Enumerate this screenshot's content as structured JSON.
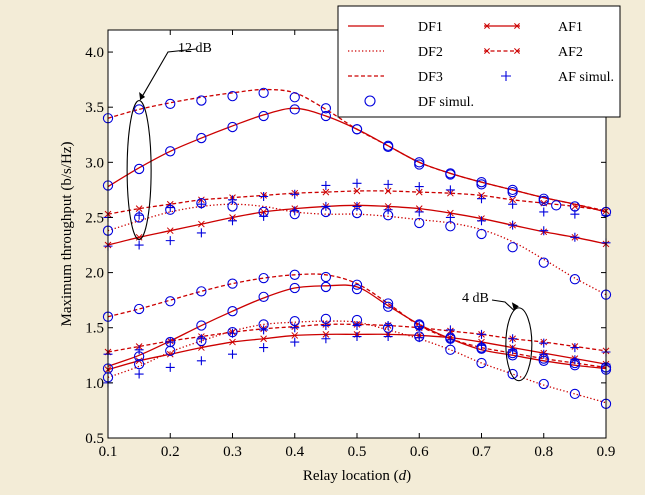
{
  "colors": {
    "background": "#f3ecd7",
    "plot_bg": "#ffffff",
    "line": "#cc0000",
    "marker": "#0000dd"
  },
  "chart_data": {
    "type": "line",
    "xlabel_prefix": "Relay location (",
    "xlabel_var": "d",
    "xlabel_suffix": ")",
    "ylabel": "Maximum throughput (b/s/Hz)",
    "xlim": [
      0.1,
      0.9
    ],
    "ylim": [
      0.5,
      4.2
    ],
    "xticks": [
      "0.1",
      "0.2",
      "0.3",
      "0.4",
      "0.5",
      "0.6",
      "0.7",
      "0.8",
      "0.9"
    ],
    "yticks": [
      "0.5",
      "1.0",
      "1.5",
      "2.0",
      "2.5",
      "3.0",
      "3.5",
      "4.0"
    ],
    "grid": false,
    "legend_position": "top-right",
    "legend": [
      {
        "label": "DF1",
        "style": "solid"
      },
      {
        "label": "AF1",
        "style": "solid-x"
      },
      {
        "label": "DF2",
        "style": "dotted"
      },
      {
        "label": "AF2",
        "style": "dashed-x"
      },
      {
        "label": "DF3",
        "style": "dashed"
      },
      {
        "label": "AF simul.",
        "style": "plus"
      },
      {
        "label": "DF simul.",
        "style": "circle"
      }
    ],
    "annotations": [
      {
        "text": "12 dB",
        "ellipse_center": [
          0.15,
          2.93
        ],
        "ellipse_radii_data": [
          0.02,
          0.63
        ]
      },
      {
        "text": "4 dB",
        "ellipse_center": [
          0.76,
          1.35
        ],
        "ellipse_radii_data": [
          0.02,
          0.33
        ]
      }
    ],
    "x": [
      0.1,
      0.15,
      0.2,
      0.25,
      0.3,
      0.35,
      0.4,
      0.45,
      0.5,
      0.55,
      0.6,
      0.65,
      0.7,
      0.75,
      0.8,
      0.85,
      0.9
    ],
    "series": [
      {
        "name": "DF1",
        "group": "12 dB",
        "style": "solid",
        "values": [
          2.78,
          2.95,
          3.1,
          3.22,
          3.33,
          3.43,
          3.49,
          3.42,
          3.3,
          3.15,
          3.0,
          2.9,
          2.82,
          2.75,
          2.68,
          2.62,
          2.55
        ]
      },
      {
        "name": "DF3",
        "group": "12 dB",
        "style": "dashed",
        "values": [
          3.4,
          3.48,
          3.54,
          3.59,
          3.63,
          3.66,
          3.63,
          3.48,
          3.3,
          3.15,
          3.0,
          2.9,
          2.82,
          2.75,
          2.68,
          2.62,
          2.56
        ]
      },
      {
        "name": "AF2",
        "group": "12 dB",
        "style": "dashed-x",
        "values": [
          2.53,
          2.58,
          2.62,
          2.66,
          2.68,
          2.7,
          2.72,
          2.73,
          2.74,
          2.74,
          2.73,
          2.72,
          2.7,
          2.66,
          2.63,
          2.6,
          2.56
        ]
      },
      {
        "name": "DF2",
        "group": "12 dB",
        "style": "dotted",
        "values": [
          2.38,
          2.47,
          2.55,
          2.6,
          2.62,
          2.6,
          2.55,
          2.53,
          2.53,
          2.51,
          2.48,
          2.45,
          2.39,
          2.28,
          2.12,
          1.95,
          1.8
        ]
      },
      {
        "name": "AF1",
        "group": "12 dB",
        "style": "solid-x",
        "values": [
          2.25,
          2.32,
          2.38,
          2.44,
          2.5,
          2.55,
          2.58,
          2.6,
          2.61,
          2.6,
          2.58,
          2.54,
          2.49,
          2.43,
          2.37,
          2.32,
          2.26
        ]
      },
      {
        "name": "DF3",
        "group": "4 dB",
        "style": "dashed",
        "values": [
          1.6,
          1.67,
          1.75,
          1.83,
          1.9,
          1.95,
          1.98,
          1.98,
          1.9,
          1.72,
          1.52,
          1.4,
          1.32,
          1.27,
          1.22,
          1.18,
          1.14
        ]
      },
      {
        "name": "DF1",
        "group": "4 dB",
        "style": "solid",
        "values": [
          1.15,
          1.25,
          1.38,
          1.52,
          1.65,
          1.77,
          1.86,
          1.88,
          1.87,
          1.7,
          1.53,
          1.4,
          1.3,
          1.25,
          1.2,
          1.16,
          1.13
        ]
      },
      {
        "name": "AF2",
        "group": "4 dB",
        "style": "dashed-x",
        "values": [
          1.28,
          1.33,
          1.38,
          1.42,
          1.46,
          1.49,
          1.51,
          1.53,
          1.53,
          1.52,
          1.5,
          1.47,
          1.44,
          1.4,
          1.37,
          1.33,
          1.29
        ]
      },
      {
        "name": "DF2",
        "group": "4 dB",
        "style": "dotted",
        "values": [
          1.05,
          1.15,
          1.28,
          1.38,
          1.47,
          1.53,
          1.55,
          1.56,
          1.55,
          1.48,
          1.4,
          1.3,
          1.18,
          1.08,
          0.98,
          0.9,
          0.82
        ]
      },
      {
        "name": "AF1",
        "group": "4 dB",
        "style": "solid-x",
        "values": [
          1.12,
          1.2,
          1.26,
          1.32,
          1.37,
          1.4,
          1.43,
          1.44,
          1.44,
          1.44,
          1.43,
          1.41,
          1.37,
          1.32,
          1.27,
          1.22,
          1.17
        ]
      }
    ],
    "simulation": [
      {
        "name": "DF simul.",
        "marker": "circle",
        "points": [
          [
            0.1,
            3.4
          ],
          [
            0.15,
            3.48
          ],
          [
            0.2,
            3.53
          ],
          [
            0.25,
            3.56
          ],
          [
            0.3,
            3.6
          ],
          [
            0.35,
            3.63
          ],
          [
            0.4,
            3.59
          ],
          [
            0.45,
            3.49
          ],
          [
            0.5,
            3.3
          ],
          [
            0.55,
            3.15
          ],
          [
            0.6,
            2.98
          ],
          [
            0.65,
            2.9
          ],
          [
            0.7,
            2.82
          ],
          [
            0.75,
            2.75
          ],
          [
            0.8,
            2.67
          ],
          [
            0.85,
            2.6
          ],
          [
            0.9,
            2.55
          ],
          [
            0.1,
            2.79
          ],
          [
            0.15,
            2.94
          ],
          [
            0.2,
            3.1
          ],
          [
            0.25,
            3.22
          ],
          [
            0.3,
            3.32
          ],
          [
            0.35,
            3.42
          ],
          [
            0.4,
            3.48
          ],
          [
            0.45,
            3.42
          ],
          [
            0.5,
            3.3
          ],
          [
            0.55,
            3.14
          ],
          [
            0.6,
            3.0
          ],
          [
            0.65,
            2.89
          ],
          [
            0.7,
            2.8
          ],
          [
            0.75,
            2.73
          ],
          [
            0.8,
            2.65
          ],
          [
            0.82,
            2.61
          ],
          [
            0.1,
            2.38
          ],
          [
            0.15,
            2.5
          ],
          [
            0.2,
            2.57
          ],
          [
            0.25,
            2.63
          ],
          [
            0.3,
            2.6
          ],
          [
            0.35,
            2.55
          ],
          [
            0.4,
            2.53
          ],
          [
            0.45,
            2.55
          ],
          [
            0.5,
            2.54
          ],
          [
            0.55,
            2.52
          ],
          [
            0.6,
            2.45
          ],
          [
            0.65,
            2.42
          ],
          [
            0.7,
            2.35
          ],
          [
            0.75,
            2.23
          ],
          [
            0.8,
            2.09
          ],
          [
            0.85,
            1.94
          ],
          [
            0.9,
            1.8
          ],
          [
            0.1,
            1.6
          ],
          [
            0.15,
            1.67
          ],
          [
            0.2,
            1.74
          ],
          [
            0.25,
            1.83
          ],
          [
            0.3,
            1.9
          ],
          [
            0.35,
            1.95
          ],
          [
            0.4,
            1.98
          ],
          [
            0.45,
            1.96
          ],
          [
            0.5,
            1.89
          ],
          [
            0.55,
            1.72
          ],
          [
            0.6,
            1.52
          ],
          [
            0.65,
            1.4
          ],
          [
            0.7,
            1.32
          ],
          [
            0.75,
            1.27
          ],
          [
            0.8,
            1.22
          ],
          [
            0.85,
            1.18
          ],
          [
            0.9,
            1.14
          ],
          [
            0.1,
            1.13
          ],
          [
            0.15,
            1.24
          ],
          [
            0.2,
            1.37
          ],
          [
            0.25,
            1.52
          ],
          [
            0.3,
            1.65
          ],
          [
            0.35,
            1.78
          ],
          [
            0.4,
            1.86
          ],
          [
            0.45,
            1.87
          ],
          [
            0.5,
            1.85
          ],
          [
            0.55,
            1.69
          ],
          [
            0.6,
            1.53
          ],
          [
            0.65,
            1.41
          ],
          [
            0.7,
            1.31
          ],
          [
            0.75,
            1.25
          ],
          [
            0.8,
            1.2
          ],
          [
            0.85,
            1.16
          ],
          [
            0.9,
            1.12
          ],
          [
            0.1,
            1.05
          ],
          [
            0.15,
            1.17
          ],
          [
            0.2,
            1.29
          ],
          [
            0.25,
            1.38
          ],
          [
            0.3,
            1.46
          ],
          [
            0.35,
            1.53
          ],
          [
            0.4,
            1.56
          ],
          [
            0.45,
            1.58
          ],
          [
            0.5,
            1.57
          ],
          [
            0.55,
            1.5
          ],
          [
            0.6,
            1.42
          ],
          [
            0.65,
            1.3
          ],
          [
            0.7,
            1.18
          ],
          [
            0.75,
            1.08
          ],
          [
            0.8,
            0.99
          ],
          [
            0.85,
            0.9
          ],
          [
            0.9,
            0.81
          ]
        ]
      },
      {
        "name": "AF simul.",
        "marker": "plus",
        "points": [
          [
            0.1,
            2.5
          ],
          [
            0.15,
            2.52
          ],
          [
            0.2,
            2.59
          ],
          [
            0.25,
            2.62
          ],
          [
            0.3,
            2.66
          ],
          [
            0.35,
            2.69
          ],
          [
            0.4,
            2.71
          ],
          [
            0.45,
            2.79
          ],
          [
            0.5,
            2.81
          ],
          [
            0.55,
            2.8
          ],
          [
            0.6,
            2.78
          ],
          [
            0.65,
            2.75
          ],
          [
            0.7,
            2.67
          ],
          [
            0.75,
            2.62
          ],
          [
            0.8,
            2.55
          ],
          [
            0.85,
            2.53
          ],
          [
            0.9,
            2.52
          ],
          [
            0.1,
            2.24
          ],
          [
            0.15,
            2.25
          ],
          [
            0.2,
            2.29
          ],
          [
            0.25,
            2.36
          ],
          [
            0.3,
            2.47
          ],
          [
            0.35,
            2.51
          ],
          [
            0.4,
            2.56
          ],
          [
            0.45,
            2.6
          ],
          [
            0.5,
            2.6
          ],
          [
            0.55,
            2.57
          ],
          [
            0.6,
            2.55
          ],
          [
            0.65,
            2.5
          ],
          [
            0.7,
            2.47
          ],
          [
            0.75,
            2.43
          ],
          [
            0.8,
            2.38
          ],
          [
            0.85,
            2.32
          ],
          [
            0.9,
            2.27
          ],
          [
            0.1,
            1.26
          ],
          [
            0.15,
            1.3
          ],
          [
            0.2,
            1.37
          ],
          [
            0.25,
            1.4
          ],
          [
            0.3,
            1.45
          ],
          [
            0.35,
            1.48
          ],
          [
            0.4,
            1.5
          ],
          [
            0.45,
            1.52
          ],
          [
            0.5,
            1.52
          ],
          [
            0.55,
            1.52
          ],
          [
            0.6,
            1.51
          ],
          [
            0.65,
            1.48
          ],
          [
            0.7,
            1.44
          ],
          [
            0.75,
            1.4
          ],
          [
            0.8,
            1.36
          ],
          [
            0.85,
            1.32
          ],
          [
            0.9,
            1.28
          ],
          [
            0.1,
            1.0
          ],
          [
            0.15,
            1.08
          ],
          [
            0.2,
            1.14
          ],
          [
            0.25,
            1.2
          ],
          [
            0.3,
            1.26
          ],
          [
            0.35,
            1.32
          ],
          [
            0.4,
            1.37
          ],
          [
            0.45,
            1.4
          ],
          [
            0.5,
            1.42
          ],
          [
            0.55,
            1.42
          ],
          [
            0.6,
            1.41
          ],
          [
            0.65,
            1.39
          ],
          [
            0.7,
            1.34
          ],
          [
            0.75,
            1.3
          ],
          [
            0.8,
            1.26
          ],
          [
            0.85,
            1.21
          ],
          [
            0.9,
            1.17
          ]
        ]
      }
    ]
  }
}
